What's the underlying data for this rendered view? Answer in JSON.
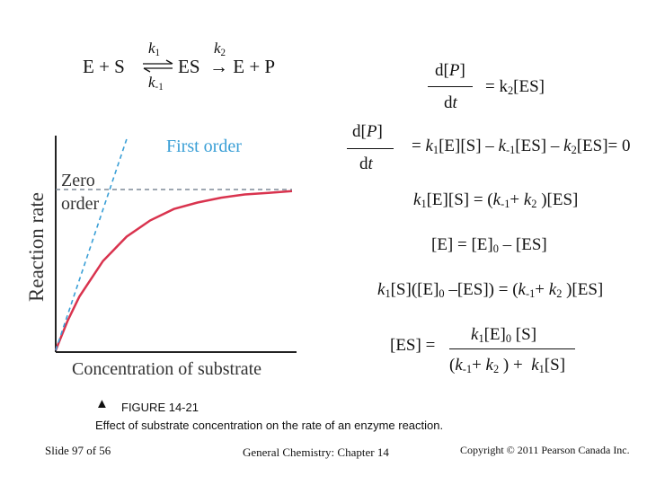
{
  "reaction": {
    "left": "E + S",
    "k1": "k",
    "k1_sub": "1",
    "k_minus1": "k",
    "k_minus1_sub": "-1",
    "middle": "ES",
    "k2": "k",
    "k2_sub": "2",
    "arrow": "→",
    "right": "E + P",
    "eq_arrow": "⟵⟶"
  },
  "rate_eq": {
    "num": "d[P]",
    "den": "dt",
    "rhs": "= k2[ES]"
  },
  "steady_state": {
    "num": "d[P]",
    "den": "dt",
    "rhs": "= k1[E][S] – k-1[ES] – k2[ES]= 0"
  },
  "eq1": "k1[E][S] = (k-1+ k2 )[ES]",
  "eq2": "[E] = [E]0 – [ES]",
  "eq3": "k1[S]([E]0 –[ES]) = (k-1+ k2 )[ES]",
  "eq4": {
    "lhs": "[ES] =",
    "num": "k1[E]0 [S]",
    "den": "(k-1+ k2 ) + k1[S]"
  },
  "chart_data": {
    "type": "line",
    "title": "",
    "xlabel": "Concentration of substrate",
    "ylabel": "Reaction rate",
    "annotations": [
      "First order",
      "Zero order"
    ],
    "series": [
      {
        "name": "",
        "style": "solid",
        "color": "#d9334e",
        "x": [
          0,
          0.5,
          1,
          2,
          3,
          4,
          5,
          6,
          7,
          8,
          9,
          10
        ],
        "y": [
          0,
          0.18,
          0.33,
          0.55,
          0.7,
          0.8,
          0.87,
          0.91,
          0.94,
          0.96,
          0.97,
          0.98
        ]
      },
      {
        "name": "",
        "style": "dashed",
        "color": "#3a9fd6",
        "x": [
          0,
          3.0
        ],
        "y": [
          0,
          1.3
        ]
      },
      {
        "name": "",
        "style": "dashed",
        "color": "#7f8a97",
        "x": [
          0,
          10
        ],
        "y": [
          0.99,
          0.99
        ]
      }
    ],
    "grid": false,
    "ylim": [
      0,
      1.3
    ]
  },
  "figure": {
    "marker": "▲",
    "number": "FIGURE 14-21",
    "caption": "Effect of substrate concentration on the rate of an enzyme reaction."
  },
  "footer": {
    "slide": "Slide 97 of 56",
    "course": "General Chemistry: Chapter 14",
    "copyright": "Copyright © 2011 Pearson Canada Inc."
  }
}
